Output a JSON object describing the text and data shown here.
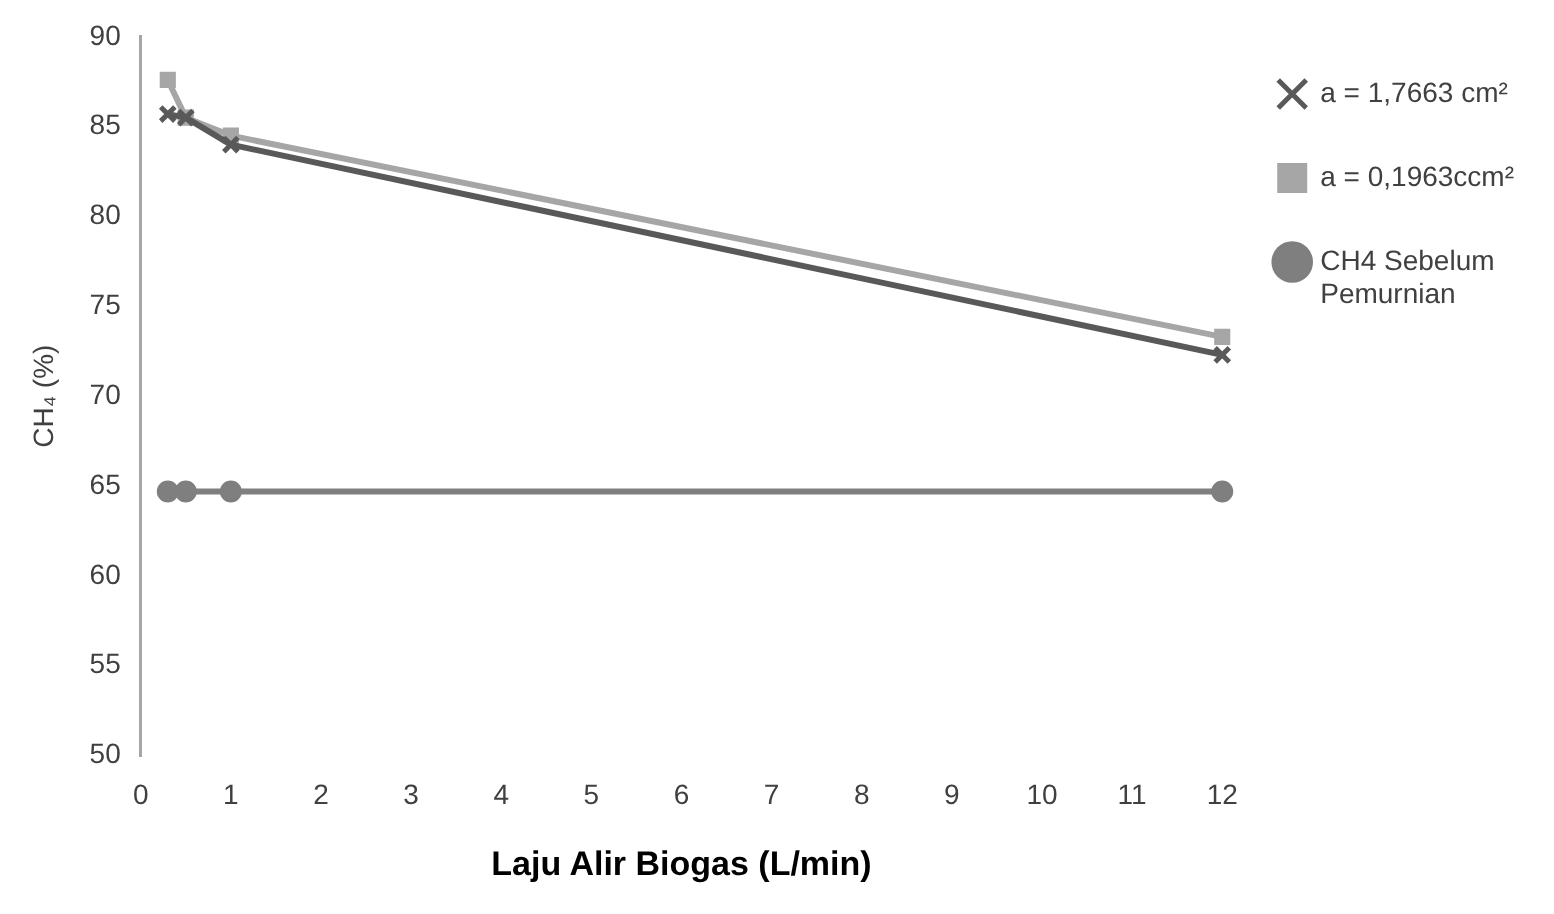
{
  "chart_data": {
    "type": "line",
    "xlabel": "Laju Alir Biogas (L/min)",
    "ylabel": "CH₄ (%)",
    "xlim": [
      0,
      12
    ],
    "xticks": [
      0,
      1,
      2,
      3,
      4,
      5,
      6,
      7,
      8,
      9,
      10,
      11,
      12
    ],
    "ylim": [
      50,
      90
    ],
    "yticks": [
      50,
      55,
      60,
      65,
      70,
      75,
      80,
      85,
      90
    ],
    "grid": false,
    "legend": "right",
    "series": [
      {
        "name": "a = 1,7663 cm²",
        "color": "#595959",
        "marker": "cross",
        "x": [
          0.3,
          0.5,
          1,
          12
        ],
        "values": [
          85.7,
          85.5,
          84.0,
          72.3
        ]
      },
      {
        "name": "a = 0,1963ccm²",
        "color": "#a6a6a6",
        "marker": "square",
        "x": [
          0.3,
          0.5,
          1,
          12
        ],
        "values": [
          87.6,
          85.5,
          84.5,
          73.3
        ]
      },
      {
        "name": "CH4 Sebelum Pemurnian",
        "color": "#7f7f7f",
        "marker": "circle",
        "x": [
          0.3,
          0.5,
          1,
          12
        ],
        "values": [
          64.7,
          64.7,
          64.7,
          64.7
        ]
      }
    ]
  }
}
